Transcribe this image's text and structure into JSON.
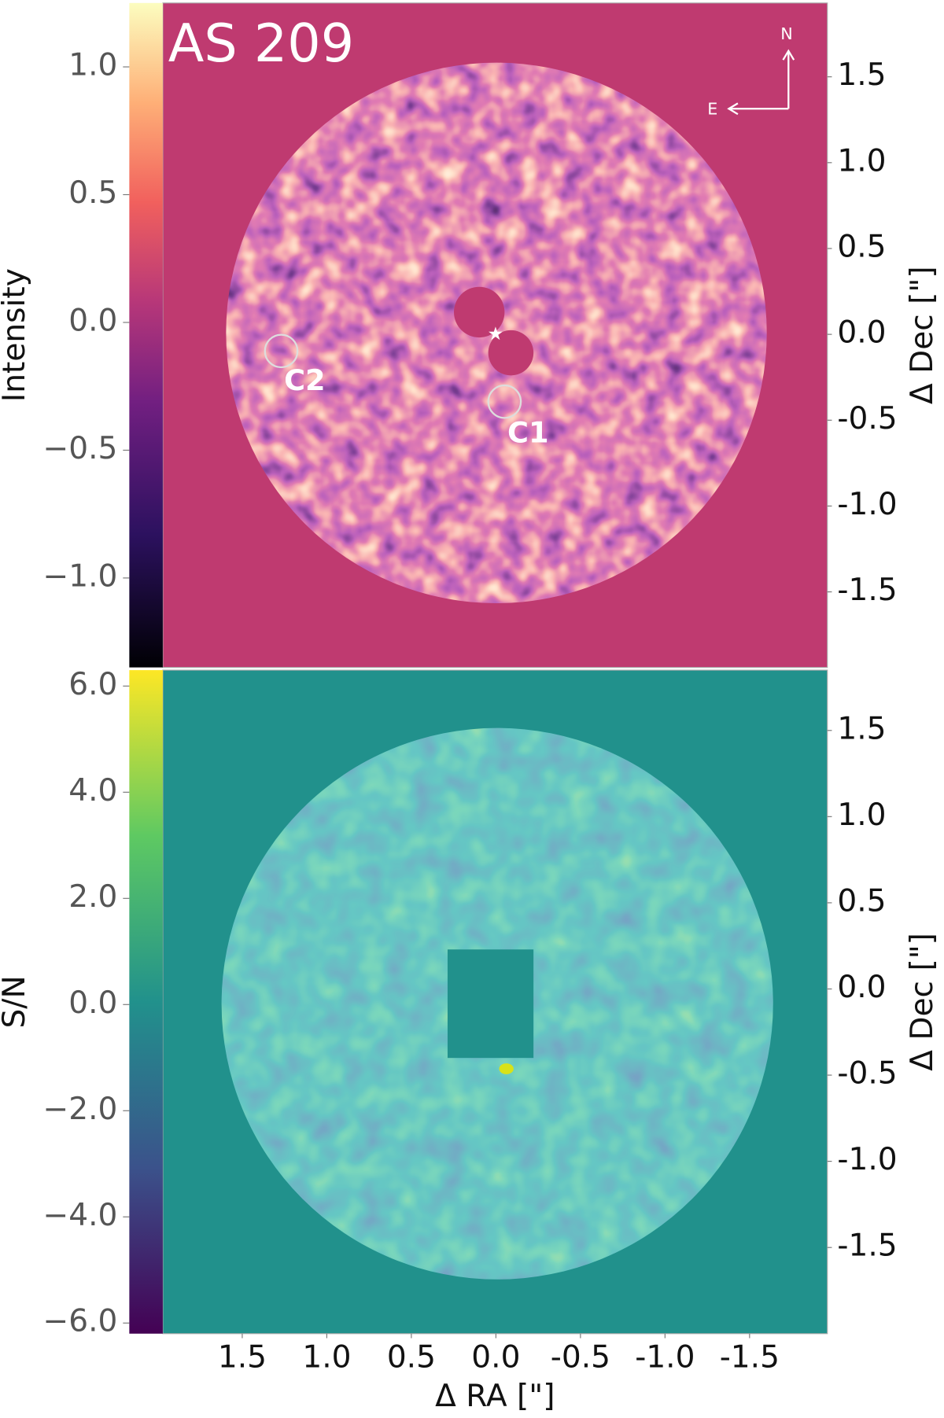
{
  "chart_data": [
    {
      "type": "image",
      "title": "AS 209",
      "colorbar_label": "Intensity",
      "clim": [
        -1.35,
        1.25
      ],
      "colorbar_ticks": [
        {
          "value": 1.0,
          "label": "1.0"
        },
        {
          "value": 0.5,
          "label": "0.5"
        },
        {
          "value": 0.0,
          "label": "0.0"
        },
        {
          "value": -0.5,
          "label": "−0.5"
        },
        {
          "value": -1.0,
          "label": "−1.0"
        }
      ],
      "ylabel": "Δ Dec [\"]",
      "ylim": [
        -1.94,
        1.93
      ],
      "yticks": [
        {
          "value": 1.5,
          "label": "1.5"
        },
        {
          "value": 1.0,
          "label": "1.0"
        },
        {
          "value": 0.5,
          "label": "0.5"
        },
        {
          "value": 0.0,
          "label": "0.0"
        },
        {
          "value": -0.5,
          "label": "-0.5"
        },
        {
          "value": -1.0,
          "label": "-1.0"
        },
        {
          "value": -1.5,
          "label": "-1.5"
        }
      ],
      "annotations": [
        "C1",
        "C2"
      ],
      "compass": [
        "N",
        "E"
      ]
    },
    {
      "type": "image",
      "colorbar_label": "S/N",
      "clim": [
        -6.2,
        6.3
      ],
      "colorbar_ticks": [
        {
          "value": 6.0,
          "label": "6.0"
        },
        {
          "value": 4.0,
          "label": "4.0"
        },
        {
          "value": 2.0,
          "label": "2.0"
        },
        {
          "value": 0.0,
          "label": "0.0"
        },
        {
          "value": -2.0,
          "label": "−2.0"
        },
        {
          "value": -4.0,
          "label": "−4.0"
        },
        {
          "value": -6.0,
          "label": "−6.0"
        }
      ],
      "ylabel": "Δ Dec [\"]",
      "ylim": [
        -2.0,
        1.85
      ],
      "yticks": [
        {
          "value": 1.5,
          "label": "1.5"
        },
        {
          "value": 1.0,
          "label": "1.0"
        },
        {
          "value": 0.5,
          "label": "0.5"
        },
        {
          "value": 0.0,
          "label": "0.0"
        },
        {
          "value": -0.5,
          "label": "-0.5"
        },
        {
          "value": -1.0,
          "label": "-1.0"
        },
        {
          "value": -1.5,
          "label": "-1.5"
        }
      ],
      "xlabel": "Δ RA [\"]",
      "xlim": [
        1.97,
        -1.96
      ],
      "xticks": [
        {
          "value": 1.5,
          "label": "1.5"
        },
        {
          "value": 1.0,
          "label": "1.0"
        },
        {
          "value": 0.5,
          "label": "0.5"
        },
        {
          "value": 0.0,
          "label": "0.0"
        },
        {
          "value": -0.5,
          "label": "-0.5"
        },
        {
          "value": -1.0,
          "label": "-1.0"
        },
        {
          "value": -1.5,
          "label": "-1.5"
        }
      ]
    }
  ]
}
